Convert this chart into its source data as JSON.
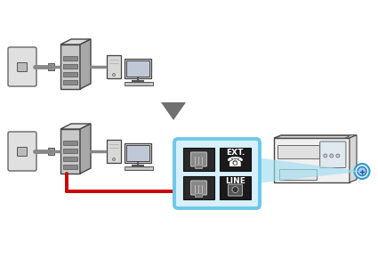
{
  "bg_color": "#ffffff",
  "arrow_color": "#707070",
  "red_line_color": "#cc0000",
  "blue_box_color": "#6dc8e8",
  "cable_gray": "#888888",
  "ext_label": "EXT.",
  "line_label": "LINE",
  "wall_color": "#d8d8d8",
  "modem_face": "#c8c8c8",
  "modem_top": "#e0e0e0",
  "modem_right": "#a8a8a8",
  "modem_port_dark": "#555555",
  "printer_body": "#f2f2f2",
  "printer_edge": "#444444",
  "monitor_screen": "#c0c8d8",
  "blue_beam": "#a0dcf0"
}
